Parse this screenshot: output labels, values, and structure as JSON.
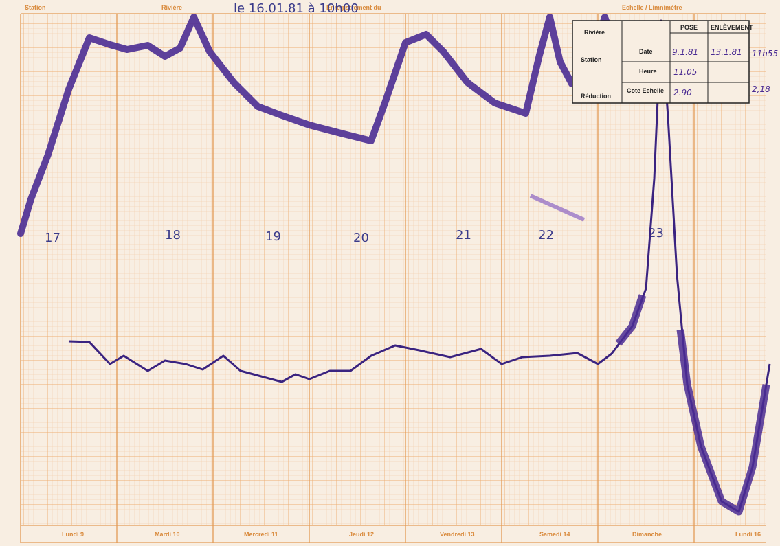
{
  "header": {
    "station": "Station",
    "riviere": "Rivière",
    "enregistrement": "Enregistrement du",
    "echelle": "Echelle / Limnimètre",
    "note": "le 16.01.81 à 10h00"
  },
  "day_numbers": [
    "17",
    "18",
    "19",
    "20",
    "21",
    "22",
    "23"
  ],
  "weekdays": [
    "Lundi 9",
    "Mardi 10",
    "Mercredi 11",
    "Jeudi 12",
    "Vendredi 13",
    "Samedi 14",
    "Dimanche",
    "Lundi 16"
  ],
  "table": {
    "labels": {
      "riviere": "Rivière",
      "station": "Station",
      "reduction": "Réduction",
      "date": "Date",
      "heure": "Heure",
      "cote": "Cote Echelle"
    },
    "columns": [
      "POSE",
      "ENLÈVEMENT"
    ],
    "date": [
      "9.1.81",
      "13.1.81"
    ],
    "heure": "11.05",
    "cote": "2.90"
  },
  "side_notes": [
    "11h55",
    "2,18"
  ]
}
